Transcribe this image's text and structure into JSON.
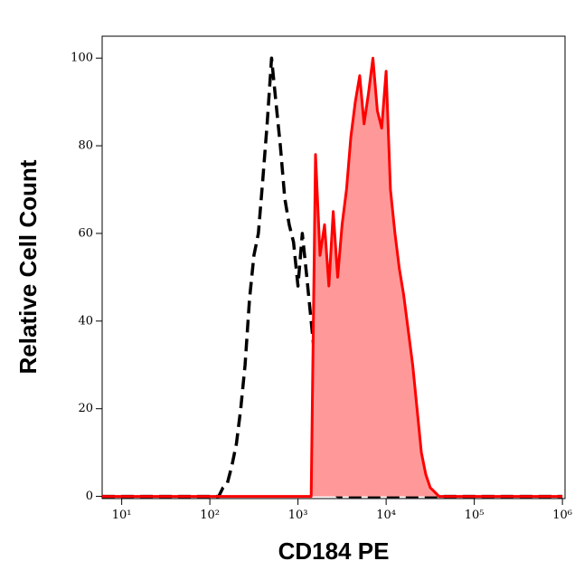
{
  "chart_data": {
    "type": "histogram-overlay",
    "x_label": "CD184 PE",
    "y_label": "Relative Cell Count",
    "xscale": "log",
    "xlim": [
      6,
      1070000
    ],
    "xticks": [
      {
        "value": 10,
        "label": "10¹"
      },
      {
        "value": 100,
        "label": "10²"
      },
      {
        "value": 1000,
        "label": "10³"
      },
      {
        "value": 10000,
        "label": "10⁴"
      },
      {
        "value": 100000,
        "label": "10⁵"
      },
      {
        "value": 1000000,
        "label": "10⁶"
      }
    ],
    "ylim": [
      -0.5,
      105
    ],
    "yticks": [
      0,
      20,
      40,
      60,
      80,
      100
    ],
    "x": [
      6,
      100,
      112,
      126,
      141,
      158,
      178,
      200,
      224,
      251,
      282,
      316,
      355,
      398,
      447,
      501,
      562,
      631,
      708,
      794,
      891,
      1000,
      1120,
      1260,
      1410,
      1580,
      1780,
      2000,
      2240,
      2510,
      2820,
      3160,
      3550,
      3980,
      4470,
      5010,
      5620,
      6310,
      7080,
      7940,
      8910,
      10000,
      11200,
      12600,
      14100,
      15800,
      17800,
      20000,
      22400,
      25100,
      28200,
      31600,
      35500,
      39800,
      44700,
      50100,
      1000000
    ],
    "series": [
      {
        "color": "#000000",
        "linestyle": "dashed",
        "values": [
          0,
          0,
          0,
          0,
          2,
          3,
          7,
          12,
          20,
          30,
          45,
          55,
          60,
          72,
          85,
          100,
          90,
          80,
          68,
          62,
          58,
          48,
          60,
          50,
          40,
          30,
          20,
          10,
          4,
          1,
          0,
          0,
          0,
          0,
          0,
          0,
          0,
          0,
          0,
          0,
          0,
          0,
          0,
          0,
          0,
          0,
          0,
          0,
          0,
          0,
          0,
          0,
          0,
          0,
          0,
          0,
          0
        ]
      },
      {
        "color": "#ff0000",
        "fill": "#ff9999",
        "linestyle": "solid",
        "values": [
          0,
          0,
          0,
          0,
          0,
          0,
          0,
          0,
          0,
          0,
          0,
          0,
          0,
          0,
          0,
          0,
          0,
          0,
          0,
          0,
          0,
          0,
          0,
          0,
          0,
          78,
          55,
          62,
          48,
          65,
          50,
          62,
          70,
          82,
          90,
          96,
          85,
          92,
          100,
          88,
          84,
          97,
          70,
          60,
          52,
          46,
          38,
          30,
          20,
          10,
          5,
          2,
          1,
          0,
          0,
          0,
          0
        ]
      }
    ]
  }
}
